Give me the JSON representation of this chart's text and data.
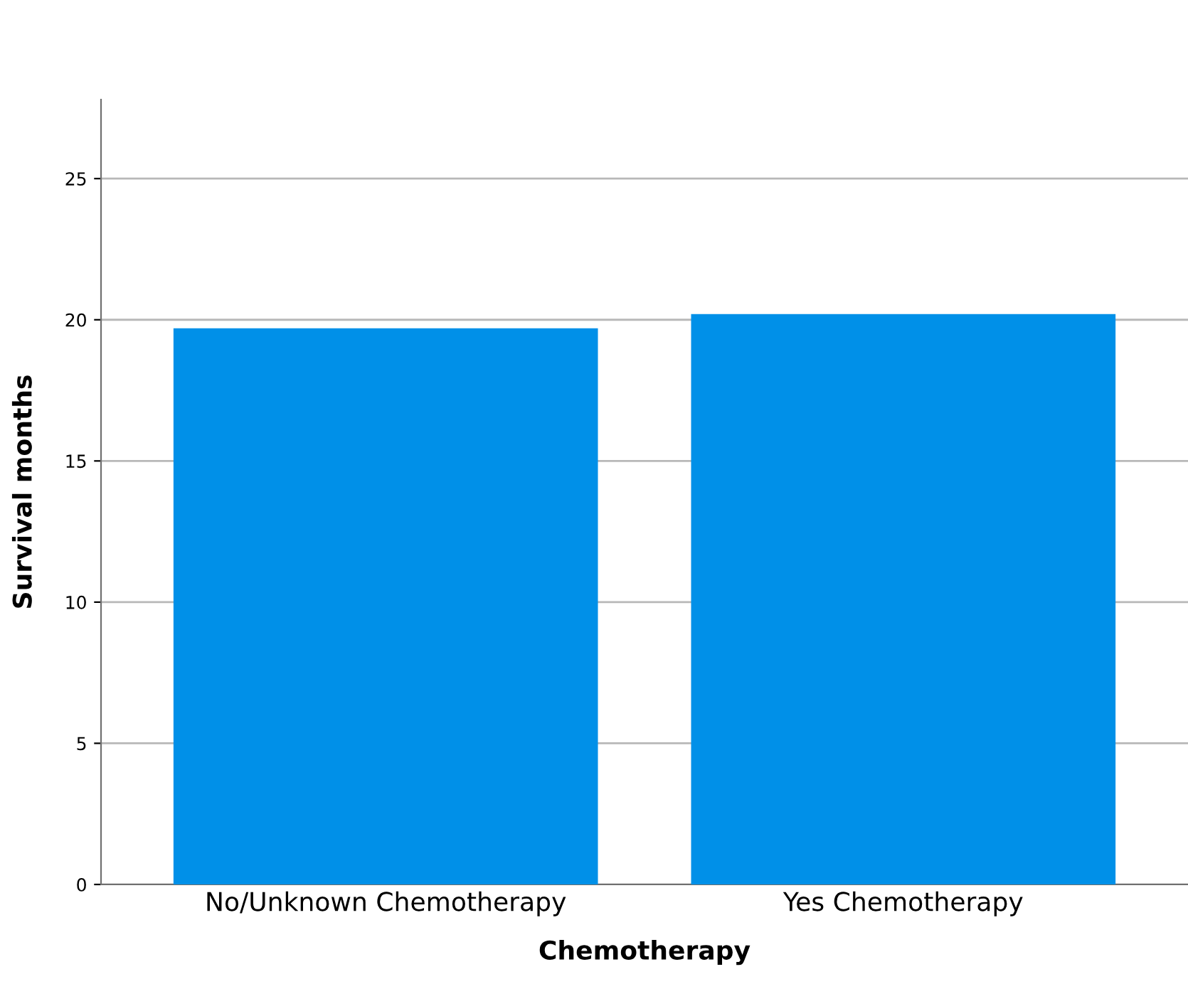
{
  "chart_data": {
    "type": "bar",
    "xlabel": "Chemotherapy",
    "ylabel": "Survival months",
    "categories": [
      "No/Unknown Chemotherapy",
      "Yes Chemotherapy"
    ],
    "values": [
      19.7,
      20.2
    ],
    "color": "#0090e8",
    "ylim": [
      0,
      27.8
    ],
    "yticks": [
      0,
      5,
      10,
      15,
      20,
      25
    ],
    "grid": "y"
  }
}
